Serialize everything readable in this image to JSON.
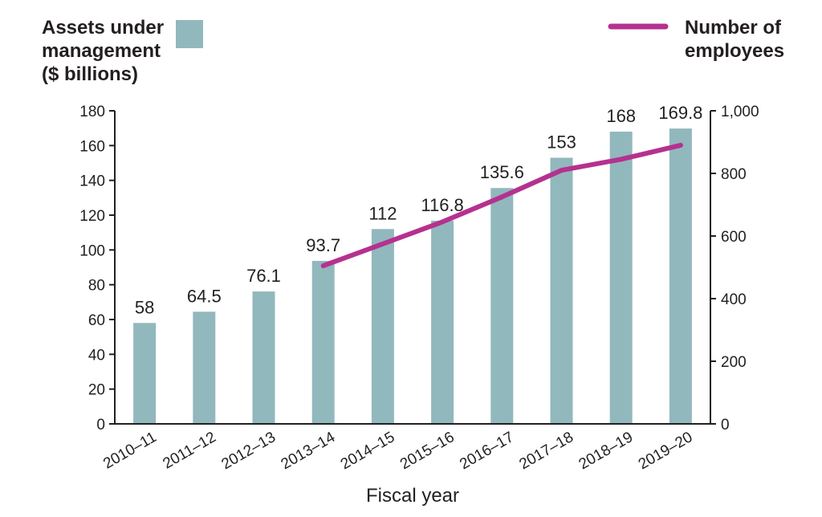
{
  "chart_data": {
    "type": "bar",
    "xlabel": "Fiscal year",
    "categories": [
      "2010–11",
      "2011–12",
      "2012–13",
      "2013–14",
      "2014–15",
      "2015–16",
      "2016–17",
      "2017–18",
      "2018–19",
      "2019–20"
    ],
    "series": [
      {
        "name": "Assets under management ($ billions)",
        "type": "bar",
        "axis": "left",
        "values": [
          58,
          64.5,
          76.1,
          93.7,
          112,
          116.8,
          135.6,
          153,
          168,
          169.8
        ],
        "labels": [
          "58",
          "64.5",
          "76.1",
          "93.7",
          "112",
          "116.8",
          "135.6",
          "153",
          "168",
          "169.8"
        ]
      },
      {
        "name": "Number of employees",
        "type": "line",
        "axis": "right",
        "values": [
          null,
          null,
          null,
          505,
          575,
          645,
          725,
          810,
          845,
          890
        ]
      }
    ],
    "y_left": {
      "ylim": [
        0,
        180
      ],
      "ticks": [
        0,
        20,
        40,
        60,
        80,
        100,
        120,
        140,
        160,
        180
      ],
      "tick_labels": [
        "0",
        "20",
        "40",
        "60",
        "80",
        "100",
        "120",
        "140",
        "160",
        "180"
      ]
    },
    "y_right": {
      "ylim": [
        0,
        1000
      ],
      "ticks": [
        0,
        200,
        400,
        600,
        800,
        1000
      ],
      "tick_labels": [
        "0",
        "200",
        "400",
        "600",
        "800",
        "1,000"
      ]
    },
    "legend": {
      "bar_lines": [
        "Assets under",
        "management",
        "($ billions)"
      ],
      "line_lines": [
        "Number of",
        "employees"
      ],
      "placement": "top"
    },
    "grid": false
  },
  "colors": {
    "bar": "#91b8bd",
    "line": "#b5318f",
    "axis": "#231f20",
    "text": "#231f20"
  }
}
